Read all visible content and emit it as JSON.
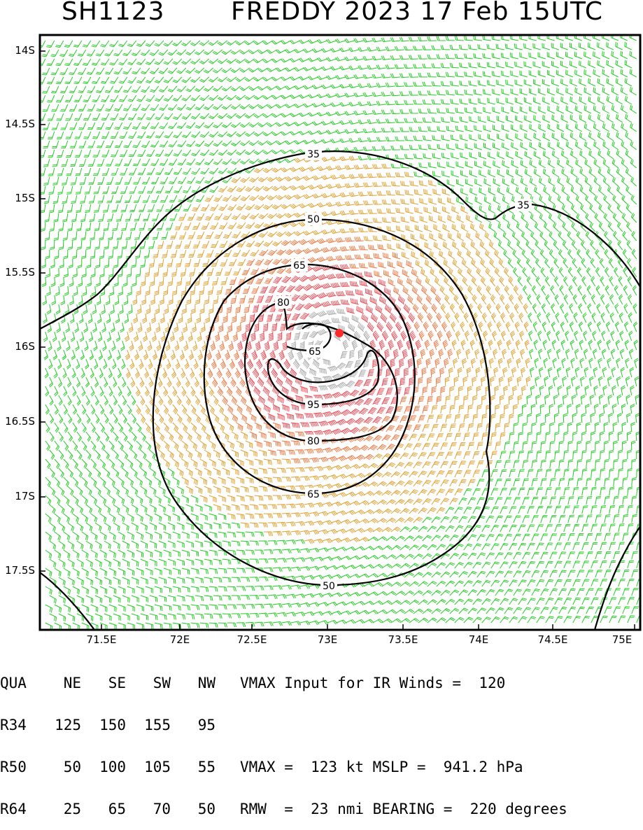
{
  "header": {
    "storm_id": "SH1123",
    "title": "FREDDY 2023 17 Feb 15UTC"
  },
  "axes": {
    "lat_labels": [
      "14S",
      "14.5S",
      "15S",
      "15.5S",
      "16S",
      "16.5S",
      "17S",
      "17.5S"
    ],
    "lon_labels": [
      "71.5E",
      "72E",
      "72.5E",
      "73E",
      "73.5E",
      "74E",
      "74.5E",
      "75E"
    ]
  },
  "contour_labels": {
    "c35a": "35",
    "c35b": "35",
    "c50a": "50",
    "c50b": "50",
    "c65a": "65",
    "c65b": "65",
    "c65c": "65",
    "c80a": "80",
    "c80b": "80",
    "c95": "95"
  },
  "colors": {
    "barb_34_50": "#22cc22",
    "barb_50_64": "#e0a030",
    "barb_64_80": "#f07840",
    "barb_80_96": "#f04a55",
    "barb_96plus": "#a8a8a8",
    "center": "#ff2a2a",
    "contour": "#000000"
  },
  "table": {
    "headers": [
      "QUA",
      "NE",
      "SE",
      "SW",
      "NW"
    ],
    "rows": [
      {
        "name": "R34",
        "values": [
          "125",
          "150",
          "155",
          "95"
        ]
      },
      {
        "name": "R50",
        "values": [
          "50",
          "100",
          "105",
          "55"
        ]
      },
      {
        "name": "R64",
        "values": [
          "25",
          "65",
          "70",
          "50"
        ]
      }
    ]
  },
  "info": {
    "line1": "VMAX Input for IR Winds =  120",
    "line2": "VMAX =  123 kt MSLP =  941.2 hPa",
    "line3": "RMW  =  23 nmi BEARING =  220 degrees"
  }
}
